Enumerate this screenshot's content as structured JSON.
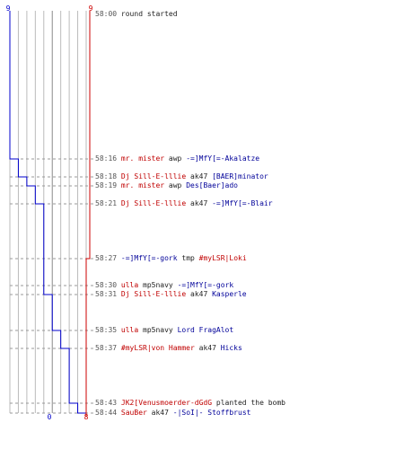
{
  "graph": {
    "blue_start": "9",
    "red_start": "9",
    "blue_end": "0",
    "red_end": "8",
    "blue_color": "#0000cc",
    "red_color": "#cc0000",
    "grid_color": "#bbbbbb",
    "blue_steps": [
      9,
      8,
      7,
      6,
      5,
      5,
      4,
      3,
      2,
      1,
      0
    ],
    "red_steps": [
      9,
      9,
      9,
      9,
      9,
      8,
      8,
      8,
      8,
      8,
      8
    ]
  },
  "events": [
    {
      "time": "58:00",
      "a": "",
      "a_team": "",
      "action": "round started",
      "v": "",
      "v_team": ""
    },
    {
      "time": "58:16",
      "a": "mr. mister",
      "a_team": "red",
      "action": "awp",
      "v": "-=]MfY[=-Akalatze",
      "v_team": "blue"
    },
    {
      "time": "58:18",
      "a": "Dj Sill-E-lllie",
      "a_team": "red",
      "action": "ak47",
      "v": "[BAER]minator",
      "v_team": "blue"
    },
    {
      "time": "58:19",
      "a": "mr. mister",
      "a_team": "red",
      "action": "awp",
      "v": "Des[Baer]ado",
      "v_team": "blue"
    },
    {
      "time": "58:21",
      "a": "Dj Sill-E-lllie",
      "a_team": "red",
      "action": "ak47",
      "v": "-=]MfY[=-Blair",
      "v_team": "blue"
    },
    {
      "time": "58:27",
      "a": "-=]MfY[=-gork",
      "a_team": "blue",
      "action": "tmp",
      "v": "#myLSR|Loki",
      "v_team": "red"
    },
    {
      "time": "58:30",
      "a": "ulla",
      "a_team": "red",
      "action": "mp5navy",
      "v": "-=]MfY[=-gork",
      "v_team": "blue"
    },
    {
      "time": "58:31",
      "a": "Dj Sill-E-lllie",
      "a_team": "red",
      "action": "ak47",
      "v": "Kasperle",
      "v_team": "blue"
    },
    {
      "time": "58:35",
      "a": "ulla",
      "a_team": "red",
      "action": "mp5navy",
      "v": "Lord FragAlot",
      "v_team": "blue"
    },
    {
      "time": "58:37",
      "a": "#myLSR|von Hammer",
      "a_team": "red",
      "action": "ak47",
      "v": "Hicks",
      "v_team": "blue"
    },
    {
      "time": "58:43",
      "a": "JK2[Venusmoerder-dGdG",
      "a_team": "red",
      "action": "planted the bomb",
      "v": "",
      "v_team": ""
    },
    {
      "time": "58:44",
      "a": "SauBer",
      "a_team": "red",
      "action": "ak47",
      "v": "-|SoI|- Stoffbrust",
      "v_team": "blue"
    }
  ]
}
